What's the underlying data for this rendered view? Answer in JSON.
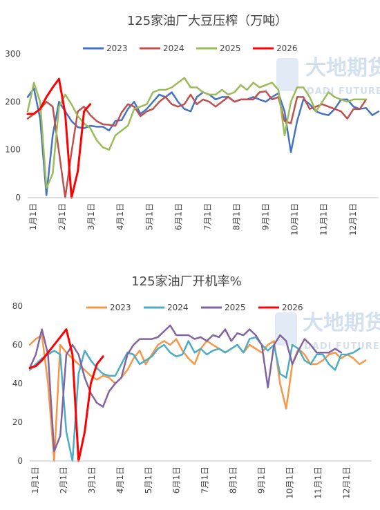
{
  "watermark": {
    "text": "大地期货",
    "subtext": "DADI FUTURES"
  },
  "chart_data": [
    {
      "type": "line",
      "title": "125家油厂大豆压榨（万吨）",
      "x_ticks": [
        "1月1日",
        "2月1日",
        "3月1日",
        "4月1日",
        "5月1日",
        "6月1日",
        "7月1日",
        "8月1日",
        "9月1日",
        "10月1日",
        "11月1日",
        "12月1日"
      ],
      "ylim": [
        0,
        300
      ],
      "y_ticks": [
        "0",
        "100",
        "200",
        "300"
      ],
      "legend": "top-center",
      "grid": false,
      "series": [
        {
          "name": "2023",
          "color": "#4472c4",
          "width": 2.5,
          "values": [
            210,
            228,
            165,
            5,
            130,
            200,
            180,
            160,
            147,
            145,
            150,
            148,
            148,
            140,
            160,
            162,
            185,
            200,
            175,
            185,
            200,
            215,
            210,
            220,
            200,
            185,
            180,
            210,
            220,
            215,
            205,
            210,
            210,
            200,
            205,
            205,
            210,
            205,
            200,
            210,
            218,
            180,
            95,
            160,
            205,
            195,
            180,
            175,
            172,
            185,
            205,
            205,
            190,
            185,
            187,
            172,
            180
          ]
        },
        {
          "name": "2024",
          "color": "#c0504d",
          "width": 2.5,
          "values": [
            165,
            175,
            185,
            200,
            190,
            95,
            0,
            95,
            180,
            190,
            172,
            160,
            153,
            152,
            150,
            178,
            195,
            190,
            170,
            180,
            185,
            200,
            210,
            195,
            190,
            195,
            215,
            195,
            205,
            200,
            190,
            200,
            210,
            200,
            205,
            205,
            205,
            220,
            222,
            205,
            210,
            160,
            155,
            210,
            210,
            185,
            190,
            195,
            190,
            185,
            180,
            165,
            185,
            185,
            205
          ]
        },
        {
          "name": "2025",
          "color": "#9bbb59",
          "width": 2.5,
          "values": [
            180,
            240,
            200,
            20,
            50,
            190,
            215,
            195,
            170,
            155,
            145,
            120,
            105,
            100,
            130,
            140,
            150,
            185,
            190,
            195,
            220,
            225,
            225,
            230,
            240,
            250,
            230,
            230,
            220,
            215,
            215,
            225,
            215,
            220,
            235,
            225,
            240,
            230,
            235,
            240,
            225,
            130,
            200,
            230,
            230,
            210,
            180,
            200,
            220,
            210,
            205,
            200,
            205,
            205,
            205
          ]
        },
        {
          "name": "2026",
          "color": "#ff0000",
          "width": 3,
          "values": [
            175,
            175,
            185,
            210,
            230,
            248,
            175,
            0,
            55,
            180,
            195
          ]
        }
      ]
    },
    {
      "type": "line",
      "title": "125家油厂开机率%",
      "x_ticks": [
        "1月1日",
        "2月1日",
        "3月1日",
        "4月1日",
        "5月1日",
        "6月1日",
        "7月1日",
        "8月1日",
        "9月1日",
        "10月1日",
        "11月1日",
        "12月1日"
      ],
      "ylim": [
        0,
        80
      ],
      "y_ticks": [
        "0",
        "20",
        "40",
        "60",
        "80"
      ],
      "legend": "top-center",
      "grid": false,
      "series": [
        {
          "name": "2023",
          "color": "#f79646",
          "width": 2.5,
          "values": [
            60,
            63,
            65,
            40,
            0,
            60,
            56,
            53,
            50,
            47,
            44,
            42,
            44,
            43,
            40,
            43,
            47,
            53,
            57,
            50,
            55,
            60,
            62,
            60,
            63,
            57,
            53,
            50,
            58,
            62,
            60,
            58,
            56,
            58,
            60,
            56,
            60,
            58,
            56,
            60,
            62,
            40,
            27,
            50,
            58,
            55,
            50,
            50,
            52,
            55,
            56,
            53,
            55,
            53,
            50,
            52
          ]
        },
        {
          "name": "2024",
          "color": "#4bacc6",
          "width": 2.5,
          "values": [
            47,
            50,
            53,
            55,
            57,
            55,
            15,
            0,
            45,
            57,
            52,
            48,
            45,
            44,
            44,
            50,
            56,
            55,
            50,
            52,
            54,
            58,
            60,
            56,
            54,
            55,
            62,
            56,
            58,
            55,
            57,
            58,
            56,
            58,
            60,
            56,
            63,
            64,
            60,
            57,
            60,
            45,
            43,
            60,
            58,
            52,
            50,
            55,
            55,
            50,
            47,
            55,
            55,
            56,
            58
          ]
        },
        {
          "name": "2025",
          "color": "#8064a2",
          "width": 2.5,
          "values": [
            48,
            55,
            68,
            55,
            5,
            13,
            55,
            60,
            55,
            43,
            35,
            30,
            28,
            36,
            40,
            43,
            55,
            60,
            63,
            63,
            63,
            64,
            67,
            70,
            65,
            65,
            65,
            63,
            64,
            62,
            65,
            64,
            68,
            62,
            66,
            65,
            68,
            65,
            60,
            38,
            60,
            65,
            62,
            50,
            57,
            63,
            60,
            56,
            56,
            56,
            58,
            56
          ]
        },
        {
          "name": "2026",
          "color": "#ff0000",
          "width": 3,
          "values": [
            48,
            49,
            52,
            56,
            60,
            64,
            68,
            55,
            0,
            15,
            40,
            50,
            54
          ]
        }
      ]
    }
  ]
}
